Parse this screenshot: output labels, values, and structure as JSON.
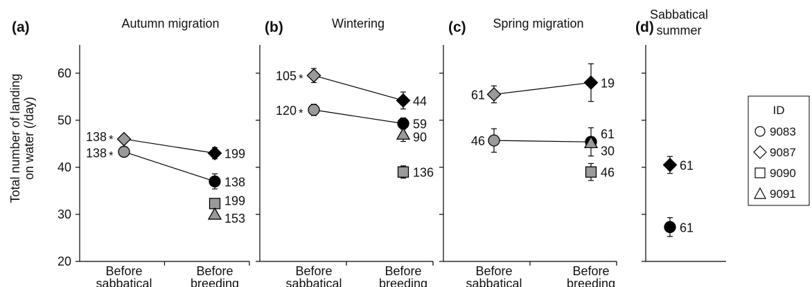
{
  "ylabel_lines": [
    "Total number of landing",
    "on water (/day)"
  ],
  "yticks": [
    20,
    30,
    40,
    50,
    60
  ],
  "ylim": [
    20,
    66
  ],
  "colors": {
    "gray": "#9a9a9a",
    "black": "#000000",
    "white": "#ffffff"
  },
  "legend": {
    "title": "ID",
    "entries": [
      {
        "id": "9083",
        "marker": "circle"
      },
      {
        "id": "9087",
        "marker": "diamond"
      },
      {
        "id": "9090",
        "marker": "square"
      },
      {
        "id": "9091",
        "marker": "triangle"
      }
    ]
  },
  "chart_data": [
    {
      "type": "scatter",
      "panel_label": "(a)",
      "title_lines": [
        "Autumn migration"
      ],
      "categories": [
        "Before|sabbatical",
        "Before|breeding"
      ],
      "series": [
        {
          "id": "9087",
          "marker": "diamond",
          "points": [
            {
              "cat": 0,
              "y": 46.0,
              "err": 0.7,
              "n": "138",
              "star": true,
              "fill": "gray"
            },
            {
              "cat": 1,
              "y": 43.0,
              "err": 1.2,
              "n": "199",
              "star": false,
              "fill": "black"
            }
          ]
        },
        {
          "id": "9083",
          "marker": "circle",
          "points": [
            {
              "cat": 0,
              "y": 43.3,
              "err": 0.7,
              "n": "138",
              "star": true,
              "fill": "gray"
            },
            {
              "cat": 1,
              "y": 37.0,
              "err": 1.6,
              "n": "138",
              "star": false,
              "fill": "black"
            }
          ]
        },
        {
          "id": "9090",
          "marker": "square",
          "points": [
            {
              "cat": 1,
              "y": 32.3,
              "err": 0,
              "n": "199",
              "star": false,
              "fill": "gray"
            }
          ]
        },
        {
          "id": "9091",
          "marker": "triangle",
          "points": [
            {
              "cat": 1,
              "y": 30.0,
              "err": 0,
              "n": "153",
              "star": false,
              "fill": "gray"
            }
          ]
        }
      ]
    },
    {
      "type": "scatter",
      "panel_label": "(b)",
      "title_lines": [
        "Wintering"
      ],
      "categories": [
        "Before|sabbatical",
        "Before|breeding"
      ],
      "series": [
        {
          "id": "9087",
          "marker": "diamond",
          "points": [
            {
              "cat": 0,
              "y": 59.5,
              "err": 1.5,
              "n": "105",
              "star": true,
              "fill": "gray"
            },
            {
              "cat": 1,
              "y": 54.2,
              "err": 1.8,
              "n": "44",
              "star": false,
              "fill": "black"
            }
          ]
        },
        {
          "id": "9083",
          "marker": "circle",
          "points": [
            {
              "cat": 0,
              "y": 52.2,
              "err": 1.2,
              "n": "120",
              "star": true,
              "fill": "gray"
            },
            {
              "cat": 1,
              "y": 49.3,
              "err": 1.2,
              "n": "59",
              "star": false,
              "fill": "black"
            }
          ]
        },
        {
          "id": "9091",
          "marker": "triangle",
          "points": [
            {
              "cat": 1,
              "y": 47.0,
              "err": 1.5,
              "n": "90",
              "star": false,
              "fill": "gray"
            }
          ]
        },
        {
          "id": "9090",
          "marker": "square",
          "points": [
            {
              "cat": 1,
              "y": 39.0,
              "err": 1.3,
              "n": "136",
              "star": false,
              "fill": "gray"
            }
          ]
        }
      ]
    },
    {
      "type": "scatter",
      "panel_label": "(c)",
      "title_lines": [
        "Spring migration"
      ],
      "categories": [
        "Before|sabbatical",
        "Before|breeding"
      ],
      "series": [
        {
          "id": "9087",
          "marker": "diamond",
          "points": [
            {
              "cat": 0,
              "y": 55.5,
              "err": 1.8,
              "n": "61",
              "star": false,
              "fill": "gray"
            },
            {
              "cat": 1,
              "y": 58.0,
              "err": 4.0,
              "n": "19",
              "star": false,
              "fill": "black"
            }
          ]
        },
        {
          "id": "9083",
          "marker": "circle",
          "points": [
            {
              "cat": 0,
              "y": 45.7,
              "err": 2.5,
              "n": "46",
              "star": false,
              "fill": "gray"
            },
            {
              "cat": 1,
              "y": 45.4,
              "err": 3.0,
              "n": "61",
              "star": false,
              "fill": "black"
            }
          ]
        },
        {
          "id": "9091",
          "marker": "triangle",
          "points": [
            {
              "cat": 1,
              "y": 45.2,
              "err": 1.0,
              "n": "30",
              "star": false,
              "fill": "gray"
            }
          ]
        },
        {
          "id": "9090",
          "marker": "square",
          "points": [
            {
              "cat": 1,
              "y": 39.0,
              "err": 1.8,
              "n": "46",
              "star": false,
              "fill": "gray"
            }
          ]
        }
      ]
    },
    {
      "type": "scatter",
      "panel_label": "(d)",
      "title_lines": [
        "Sabbatical",
        "summer"
      ],
      "categories": [],
      "series": [
        {
          "id": "9087",
          "marker": "diamond",
          "points": [
            {
              "cat": 0,
              "y": 40.5,
              "err": 1.8,
              "n": "61",
              "star": false,
              "fill": "black"
            }
          ]
        },
        {
          "id": "9083",
          "marker": "circle",
          "points": [
            {
              "cat": 0,
              "y": 27.3,
              "err": 2.0,
              "n": "61",
              "star": false,
              "fill": "black"
            }
          ]
        }
      ]
    }
  ]
}
